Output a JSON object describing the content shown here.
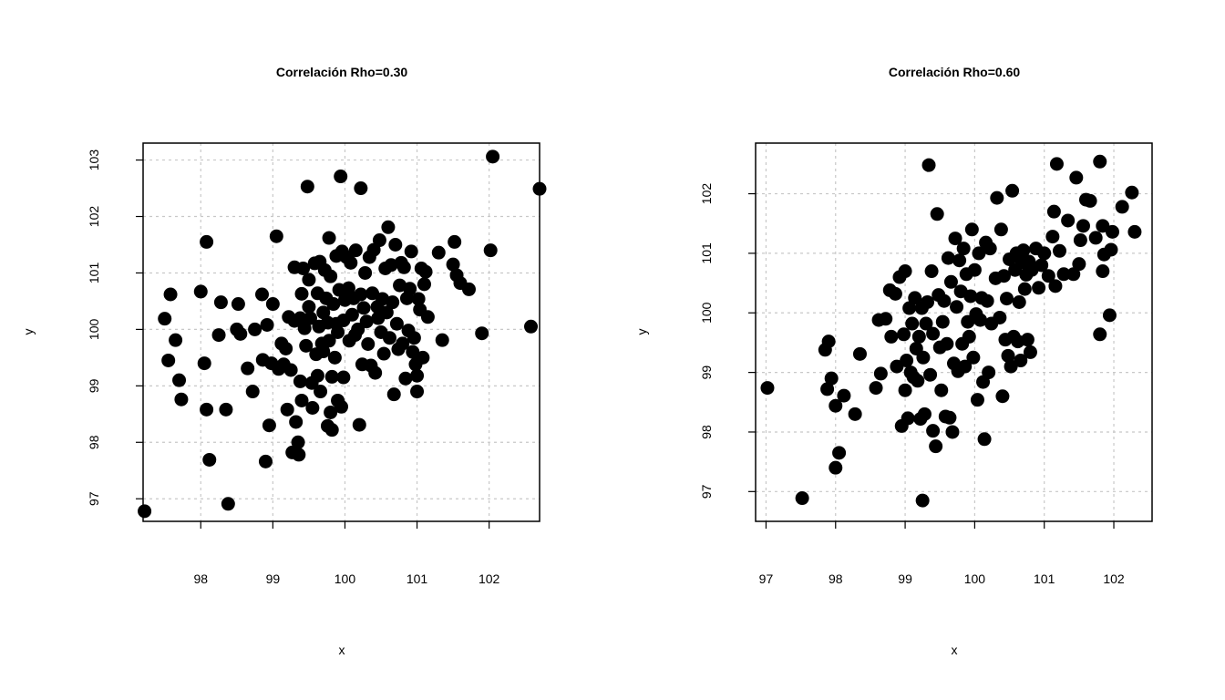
{
  "chart_data": [
    {
      "type": "scatter",
      "title": "Correlación Rho=0.30",
      "xlabel": "x",
      "ylabel": "y",
      "xlim": [
        97.2,
        102.7
      ],
      "ylim": [
        96.6,
        103.3
      ],
      "xticks": [
        98,
        99,
        100,
        101,
        102
      ],
      "yticks": [
        97,
        98,
        99,
        100,
        101,
        102,
        103
      ],
      "xtick_labels": [
        "98",
        "99",
        "100",
        "101",
        "102"
      ],
      "ytick_labels": [
        "97",
        "98",
        "99",
        "100",
        "101",
        "102",
        "103"
      ],
      "grid": true,
      "color": "#000000",
      "points": [
        [
          97.22,
          96.78
        ],
        [
          97.5,
          100.19
        ],
        [
          97.55,
          99.45
        ],
        [
          97.58,
          100.62
        ],
        [
          97.65,
          99.81
        ],
        [
          97.7,
          99.1
        ],
        [
          97.73,
          98.76
        ],
        [
          98.0,
          100.67
        ],
        [
          98.05,
          99.4
        ],
        [
          98.08,
          101.55
        ],
        [
          98.08,
          98.58
        ],
        [
          98.12,
          97.69
        ],
        [
          98.25,
          99.9
        ],
        [
          98.28,
          100.48
        ],
        [
          98.35,
          98.58
        ],
        [
          98.38,
          96.91
        ],
        [
          98.5,
          100.0
        ],
        [
          98.52,
          100.45
        ],
        [
          98.55,
          99.92
        ],
        [
          98.65,
          99.31
        ],
        [
          98.72,
          98.9
        ],
        [
          98.75,
          100.0
        ],
        [
          98.85,
          100.62
        ],
        [
          98.86,
          99.46
        ],
        [
          98.9,
          97.66
        ],
        [
          98.92,
          100.08
        ],
        [
          98.95,
          98.3
        ],
        [
          98.98,
          99.4
        ],
        [
          99.0,
          100.45
        ],
        [
          99.05,
          101.65
        ],
        [
          99.08,
          99.3
        ],
        [
          99.12,
          99.75
        ],
        [
          99.15,
          99.38
        ],
        [
          99.18,
          99.66
        ],
        [
          99.2,
          98.58
        ],
        [
          99.22,
          100.22
        ],
        [
          99.25,
          99.28
        ],
        [
          99.27,
          97.82
        ],
        [
          99.3,
          101.1
        ],
        [
          99.3,
          100.15
        ],
        [
          99.32,
          98.36
        ],
        [
          99.35,
          98.0
        ],
        [
          99.36,
          97.78
        ],
        [
          99.38,
          100.2
        ],
        [
          99.38,
          99.08
        ],
        [
          99.4,
          98.74
        ],
        [
          99.4,
          100.63
        ],
        [
          99.42,
          101.08
        ],
        [
          99.44,
          100.02
        ],
        [
          99.46,
          99.71
        ],
        [
          99.48,
          102.53
        ],
        [
          99.5,
          100.4
        ],
        [
          99.5,
          100.88
        ],
        [
          99.52,
          100.2
        ],
        [
          99.54,
          99.05
        ],
        [
          99.55,
          98.61
        ],
        [
          99.58,
          101.17
        ],
        [
          99.6,
          99.56
        ],
        [
          99.62,
          100.64
        ],
        [
          99.62,
          99.18
        ],
        [
          99.64,
          100.05
        ],
        [
          99.65,
          101.2
        ],
        [
          99.66,
          98.9
        ],
        [
          99.68,
          99.75
        ],
        [
          99.7,
          100.3
        ],
        [
          99.7,
          99.61
        ],
        [
          99.72,
          101.05
        ],
        [
          99.74,
          100.55
        ],
        [
          99.76,
          100.12
        ],
        [
          99.76,
          98.29
        ],
        [
          99.78,
          101.62
        ],
        [
          99.78,
          99.8
        ],
        [
          99.8,
          98.53
        ],
        [
          99.8,
          100.94
        ],
        [
          99.82,
          99.16
        ],
        [
          99.82,
          98.22
        ],
        [
          99.84,
          100.45
        ],
        [
          99.86,
          99.5
        ],
        [
          99.88,
          101.3
        ],
        [
          99.88,
          100.1
        ],
        [
          99.9,
          98.74
        ],
        [
          99.9,
          99.95
        ],
        [
          99.92,
          100.7
        ],
        [
          99.94,
          102.71
        ],
        [
          99.95,
          98.63
        ],
        [
          99.96,
          101.38
        ],
        [
          99.98,
          100.16
        ],
        [
          99.98,
          99.15
        ],
        [
          100.0,
          100.52
        ],
        [
          100.02,
          101.28
        ],
        [
          100.05,
          100.73
        ],
        [
          100.06,
          99.8
        ],
        [
          100.08,
          101.18
        ],
        [
          100.1,
          100.26
        ],
        [
          100.12,
          100.55
        ],
        [
          100.14,
          99.9
        ],
        [
          100.15,
          101.4
        ],
        [
          100.18,
          100.0
        ],
        [
          100.2,
          98.31
        ],
        [
          100.22,
          102.5
        ],
        [
          100.22,
          100.62
        ],
        [
          100.24,
          99.38
        ],
        [
          100.26,
          100.38
        ],
        [
          100.28,
          101.0
        ],
        [
          100.3,
          100.14
        ],
        [
          100.32,
          99.74
        ],
        [
          100.34,
          101.28
        ],
        [
          100.36,
          99.36
        ],
        [
          100.38,
          100.64
        ],
        [
          100.4,
          101.41
        ],
        [
          100.42,
          99.23
        ],
        [
          100.45,
          100.4
        ],
        [
          100.46,
          100.2
        ],
        [
          100.48,
          101.58
        ],
        [
          100.5,
          99.95
        ],
        [
          100.52,
          100.54
        ],
        [
          100.54,
          99.57
        ],
        [
          100.56,
          101.08
        ],
        [
          100.58,
          100.3
        ],
        [
          100.6,
          101.81
        ],
        [
          100.62,
          99.85
        ],
        [
          100.64,
          101.14
        ],
        [
          100.66,
          100.48
        ],
        [
          100.68,
          98.85
        ],
        [
          100.7,
          101.5
        ],
        [
          100.72,
          100.1
        ],
        [
          100.74,
          99.65
        ],
        [
          100.76,
          100.78
        ],
        [
          100.78,
          101.18
        ],
        [
          100.8,
          99.75
        ],
        [
          100.82,
          101.1
        ],
        [
          100.84,
          99.13
        ],
        [
          100.86,
          100.55
        ],
        [
          100.88,
          99.98
        ],
        [
          100.9,
          100.72
        ],
        [
          100.92,
          101.38
        ],
        [
          100.94,
          99.6
        ],
        [
          100.96,
          99.85
        ],
        [
          100.98,
          99.38
        ],
        [
          101.0,
          99.18
        ],
        [
          101.0,
          98.9
        ],
        [
          101.02,
          100.54
        ],
        [
          101.04,
          100.35
        ],
        [
          101.06,
          101.08
        ],
        [
          101.08,
          99.5
        ],
        [
          101.1,
          100.8
        ],
        [
          101.12,
          101.02
        ],
        [
          101.15,
          100.22
        ],
        [
          101.3,
          101.36
        ],
        [
          101.35,
          99.81
        ],
        [
          101.5,
          101.15
        ],
        [
          101.52,
          101.55
        ],
        [
          101.55,
          100.96
        ],
        [
          101.6,
          100.82
        ],
        [
          101.72,
          100.71
        ],
        [
          101.9,
          99.93
        ],
        [
          102.02,
          101.4
        ],
        [
          102.05,
          103.06
        ],
        [
          102.58,
          100.05
        ],
        [
          102.7,
          102.49
        ]
      ]
    },
    {
      "type": "scatter",
      "title": "Correlación Rho=0.60",
      "xlabel": "x",
      "ylabel": "y",
      "xlim": [
        96.85,
        102.55
      ],
      "ylim": [
        96.5,
        102.85
      ],
      "xticks": [
        97,
        98,
        99,
        100,
        101,
        102
      ],
      "yticks": [
        97,
        98,
        99,
        100,
        101,
        102
      ],
      "xtick_labels": [
        "97",
        "98",
        "99",
        "100",
        "101",
        "102"
      ],
      "ytick_labels": [
        "97",
        "98",
        "99",
        "100",
        "101",
        "102"
      ],
      "grid": true,
      "color": "#000000",
      "points": [
        [
          97.02,
          98.74
        ],
        [
          97.52,
          96.89
        ],
        [
          97.85,
          99.38
        ],
        [
          97.88,
          98.72
        ],
        [
          97.9,
          99.52
        ],
        [
          97.94,
          98.9
        ],
        [
          98.0,
          98.44
        ],
        [
          98.0,
          97.4
        ],
        [
          98.05,
          97.65
        ],
        [
          98.12,
          98.61
        ],
        [
          98.28,
          98.3
        ],
        [
          98.35,
          99.31
        ],
        [
          98.58,
          98.74
        ],
        [
          98.62,
          99.88
        ],
        [
          98.65,
          98.98
        ],
        [
          98.72,
          99.9
        ],
        [
          98.78,
          100.38
        ],
        [
          98.8,
          99.6
        ],
        [
          98.86,
          100.32
        ],
        [
          98.88,
          99.1
        ],
        [
          98.92,
          100.6
        ],
        [
          98.95,
          98.1
        ],
        [
          98.98,
          99.64
        ],
        [
          99.0,
          98.7
        ],
        [
          99.0,
          100.7
        ],
        [
          99.02,
          99.2
        ],
        [
          99.04,
          98.23
        ],
        [
          99.06,
          100.08
        ],
        [
          99.08,
          99.0
        ],
        [
          99.1,
          99.82
        ],
        [
          99.12,
          98.92
        ],
        [
          99.14,
          100.25
        ],
        [
          99.16,
          99.4
        ],
        [
          99.18,
          98.86
        ],
        [
          99.2,
          99.6
        ],
        [
          99.22,
          98.22
        ],
        [
          99.24,
          100.08
        ],
        [
          99.25,
          96.85
        ],
        [
          99.26,
          99.25
        ],
        [
          99.28,
          98.3
        ],
        [
          99.3,
          99.82
        ],
        [
          99.32,
          100.18
        ],
        [
          99.34,
          102.48
        ],
        [
          99.36,
          98.96
        ],
        [
          99.38,
          100.7
        ],
        [
          99.4,
          99.65
        ],
        [
          99.4,
          98.02
        ],
        [
          99.44,
          97.76
        ],
        [
          99.46,
          101.66
        ],
        [
          99.48,
          100.3
        ],
        [
          99.5,
          99.42
        ],
        [
          99.52,
          98.7
        ],
        [
          99.54,
          99.85
        ],
        [
          99.56,
          100.2
        ],
        [
          99.58,
          98.26
        ],
        [
          99.6,
          99.48
        ],
        [
          99.62,
          100.92
        ],
        [
          99.64,
          98.24
        ],
        [
          99.66,
          100.52
        ],
        [
          99.68,
          98.0
        ],
        [
          99.7,
          99.15
        ],
        [
          99.72,
          101.25
        ],
        [
          99.74,
          100.1
        ],
        [
          99.76,
          99.02
        ],
        [
          99.78,
          100.88
        ],
        [
          99.8,
          100.36
        ],
        [
          99.82,
          99.48
        ],
        [
          99.84,
          101.08
        ],
        [
          99.86,
          99.1
        ],
        [
          99.88,
          100.65
        ],
        [
          99.9,
          99.85
        ],
        [
          99.92,
          99.6
        ],
        [
          99.94,
          100.28
        ],
        [
          99.96,
          101.4
        ],
        [
          99.98,
          99.25
        ],
        [
          100.0,
          100.72
        ],
        [
          100.02,
          99.98
        ],
        [
          100.04,
          98.54
        ],
        [
          100.06,
          101.0
        ],
        [
          100.08,
          99.88
        ],
        [
          100.1,
          100.25
        ],
        [
          100.12,
          98.84
        ],
        [
          100.14,
          97.88
        ],
        [
          100.16,
          101.18
        ],
        [
          100.18,
          100.2
        ],
        [
          100.2,
          99.0
        ],
        [
          100.22,
          101.08
        ],
        [
          100.24,
          99.82
        ],
        [
          100.3,
          100.58
        ],
        [
          100.32,
          101.93
        ],
        [
          100.36,
          99.92
        ],
        [
          100.38,
          101.4
        ],
        [
          100.4,
          98.6
        ],
        [
          100.42,
          100.62
        ],
        [
          100.44,
          99.55
        ],
        [
          100.46,
          100.24
        ],
        [
          100.48,
          99.28
        ],
        [
          100.5,
          100.9
        ],
        [
          100.52,
          99.1
        ],
        [
          100.54,
          102.05
        ],
        [
          100.56,
          99.6
        ],
        [
          100.58,
          100.72
        ],
        [
          100.6,
          101.0
        ],
        [
          100.62,
          99.52
        ],
        [
          100.64,
          100.18
        ],
        [
          100.66,
          99.2
        ],
        [
          100.68,
          100.85
        ],
        [
          100.7,
          101.05
        ],
        [
          100.72,
          100.4
        ],
        [
          100.74,
          100.64
        ],
        [
          100.76,
          99.55
        ],
        [
          100.78,
          100.86
        ],
        [
          100.8,
          99.34
        ],
        [
          100.82,
          100.72
        ],
        [
          100.88,
          101.08
        ],
        [
          100.92,
          100.42
        ],
        [
          100.96,
          100.8
        ],
        [
          101.0,
          101.0
        ],
        [
          101.06,
          100.62
        ],
        [
          101.12,
          101.28
        ],
        [
          101.14,
          101.7
        ],
        [
          101.16,
          100.45
        ],
        [
          101.18,
          102.5
        ],
        [
          101.22,
          101.04
        ],
        [
          101.28,
          100.65
        ],
        [
          101.34,
          101.55
        ],
        [
          101.42,
          100.65
        ],
        [
          101.46,
          102.27
        ],
        [
          101.5,
          100.82
        ],
        [
          101.52,
          101.22
        ],
        [
          101.56,
          101.46
        ],
        [
          101.6,
          101.9
        ],
        [
          101.66,
          101.88
        ],
        [
          101.74,
          101.26
        ],
        [
          101.8,
          102.54
        ],
        [
          101.8,
          99.64
        ],
        [
          101.84,
          101.46
        ],
        [
          101.84,
          100.7
        ],
        [
          101.86,
          100.98
        ],
        [
          101.94,
          99.96
        ],
        [
          101.96,
          101.06
        ],
        [
          101.98,
          101.36
        ],
        [
          102.12,
          101.78
        ],
        [
          102.26,
          102.02
        ],
        [
          102.3,
          101.36
        ]
      ]
    }
  ]
}
